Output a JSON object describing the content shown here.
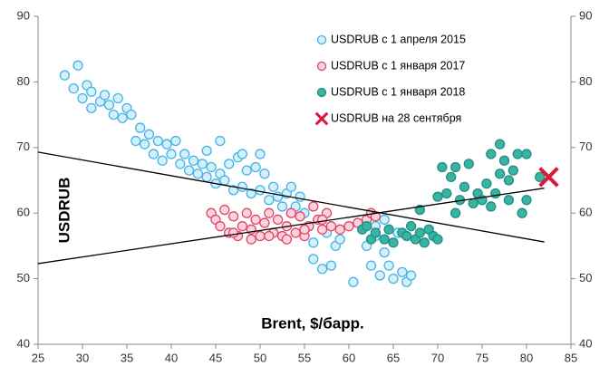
{
  "chart_data": {
    "type": "scatter",
    "x_label": "Brent, $/барр.",
    "y_label": "USDRUB",
    "xlim": [
      25,
      85
    ],
    "xticks": [
      25,
      30,
      35,
      40,
      45,
      50,
      55,
      60,
      65,
      70,
      75,
      80,
      85
    ],
    "ylim": [
      40,
      90
    ],
    "yticks": [
      40,
      50,
      60,
      70,
      80,
      90
    ],
    "y2lim": [
      40,
      90
    ],
    "y2ticks": [
      40,
      50,
      60,
      70,
      80,
      90
    ],
    "legend": "upper right",
    "series": [
      {
        "name": "USDRUB с 1 апреля 2015",
        "color": "#41b4e6",
        "fill": "#d6f0fb",
        "marker": "circle",
        "x": [
          28,
          29,
          29.5,
          30,
          30.5,
          31,
          31,
          32,
          32.5,
          33,
          33.5,
          34,
          34.5,
          35,
          35.5,
          36,
          36.5,
          37,
          37.5,
          38,
          38.5,
          39,
          39.5,
          40,
          40.5,
          41,
          41.5,
          42,
          42.5,
          43,
          43.5,
          44,
          44.5,
          45,
          45.5,
          46,
          46.5,
          47,
          47.5,
          48,
          48.5,
          49,
          49.5,
          50,
          50.5,
          51,
          51.5,
          52,
          52.5,
          53,
          53.5,
          54,
          54.5,
          55,
          55.5,
          56,
          56,
          57,
          57.5,
          58,
          58.5,
          59,
          60.5,
          62,
          62.5,
          63,
          63.5,
          64,
          64.5,
          65,
          65.5,
          66,
          66.5,
          67,
          64,
          63,
          50,
          45.5,
          44,
          48
        ],
        "values": [
          81,
          79,
          82.5,
          77.5,
          79.5,
          76,
          78.5,
          77,
          78,
          76.5,
          75,
          77.5,
          74.5,
          76,
          75,
          71,
          73,
          70.5,
          72,
          69,
          71,
          68,
          70.5,
          69,
          71,
          67.5,
          69,
          66.5,
          68,
          66,
          67.5,
          65.5,
          67,
          64.5,
          66,
          65,
          67.5,
          63.5,
          68.5,
          64,
          66.5,
          63,
          67,
          63.5,
          66,
          62,
          64,
          62.5,
          61,
          63,
          64,
          61,
          62.5,
          60,
          58,
          55.5,
          53,
          51.5,
          57,
          52,
          55,
          56,
          49.5,
          55,
          52,
          58,
          50.5,
          54,
          52,
          50,
          57,
          51,
          49.5,
          50.5,
          59,
          56.5,
          69,
          71,
          69.5,
          69
        ]
      },
      {
        "name": "USDRUB с 1 января 2017",
        "color": "#e0466a",
        "fill": "#fbd3dc",
        "marker": "circle",
        "x": [
          44.5,
          45,
          45.5,
          46,
          46.5,
          47,
          47.5,
          48,
          48.5,
          49,
          49.5,
          50,
          50.5,
          51,
          51.5,
          52,
          52.5,
          53,
          53.5,
          54,
          54.5,
          55,
          55.5,
          56,
          56.5,
          57,
          57.5,
          58,
          59,
          60,
          61,
          62,
          62.5,
          63,
          47,
          49,
          51,
          53,
          55,
          57
        ],
        "values": [
          60,
          59,
          58,
          60.5,
          57,
          59.5,
          56.5,
          58,
          60,
          57.5,
          59,
          56.5,
          58.5,
          60,
          57,
          59,
          56.5,
          58,
          60,
          57,
          59.5,
          56.5,
          58,
          61,
          59,
          57.5,
          60,
          58,
          57.5,
          58,
          58.5,
          59,
          60,
          59.5,
          57,
          56,
          56.5,
          56,
          57.5,
          59
        ]
      },
      {
        "name": "USDRUB с 1 января 2018",
        "color": "#1f8f84",
        "fill": "#3bb3a3",
        "marker": "circle",
        "x": [
          61.5,
          62,
          62.5,
          63,
          64,
          64.5,
          65,
          66,
          66.5,
          67,
          67.5,
          68,
          68.5,
          69,
          69.5,
          70,
          70,
          70.5,
          71,
          71.5,
          72,
          72.5,
          73,
          73.5,
          74,
          74.5,
          75,
          75.5,
          76,
          76.5,
          77,
          77.5,
          78,
          78.5,
          79,
          79.5,
          80,
          80,
          81.5,
          68,
          72,
          76,
          77,
          78
        ],
        "values": [
          57.5,
          58,
          56,
          57,
          56,
          57.5,
          55.5,
          57,
          56.5,
          58,
          56,
          57,
          55.5,
          57.5,
          56.5,
          56,
          62.5,
          67,
          63,
          65.5,
          67,
          62,
          64,
          67.5,
          61.5,
          63,
          62,
          64.5,
          69,
          63,
          70.5,
          68,
          62,
          66.5,
          69,
          60,
          62,
          69,
          65.5,
          60.5,
          60,
          61,
          66,
          65
        ]
      },
      {
        "name": "USDRUB на 28 сентября",
        "color": "#d9183b",
        "marker": "x",
        "x": [
          82.5
        ],
        "values": [
          65.5
        ]
      }
    ],
    "lines": [
      {
        "color": "#000",
        "x": [
          25,
          82
        ],
        "values": [
          69.3,
          55.6
        ]
      },
      {
        "color": "#000",
        "x": [
          25,
          82
        ],
        "values": [
          52.3,
          63.8
        ]
      }
    ]
  }
}
